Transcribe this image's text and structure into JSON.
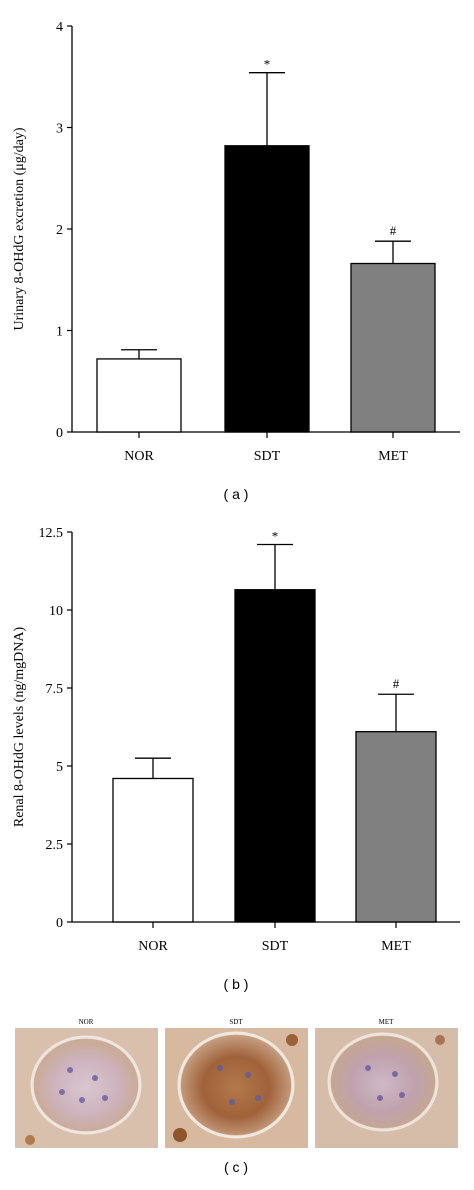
{
  "figure": {
    "panel_labels": [
      "( a )",
      "( b )",
      "( c )"
    ]
  },
  "chart_data": [
    {
      "type": "bar",
      "panel": "( a )",
      "categories": [
        "NOR",
        "SDT",
        "MET"
      ],
      "values": [
        0.72,
        2.82,
        1.66
      ],
      "errors": [
        0.09,
        0.72,
        0.22
      ],
      "significance": [
        "",
        "*",
        "#"
      ],
      "bar_colors": [
        "#ffffff",
        "#000000",
        "#808080"
      ],
      "xlabel": "",
      "ylabel": "Urinary 8-OHdG excretion (μg/day)",
      "ylim": [
        0,
        4
      ],
      "yticks": [
        0,
        1,
        2,
        3,
        4
      ],
      "ytick_labels": [
        "0",
        "1",
        "2",
        "3",
        "4"
      ],
      "grid": false
    },
    {
      "type": "bar",
      "panel": "( b )",
      "categories": [
        "NOR",
        "SDT",
        "MET"
      ],
      "values": [
        4.6,
        10.65,
        6.1
      ],
      "errors": [
        0.65,
        1.45,
        1.2
      ],
      "significance": [
        "",
        "*",
        "#"
      ],
      "bar_colors": [
        "#ffffff",
        "#000000",
        "#808080"
      ],
      "xlabel": "",
      "ylabel": "Renal 8-OHdG levels (ng/mgDNA)",
      "ylim": [
        0,
        12.5
      ],
      "yticks": [
        0,
        2.5,
        5,
        7.5,
        10,
        12.5
      ],
      "ytick_labels": [
        "0",
        "2.5",
        "5",
        "7.5",
        "10",
        "12.5"
      ],
      "grid": false
    }
  ],
  "micrographs": {
    "panel": "( c )",
    "titles": [
      "NOR",
      "SDT",
      "MET"
    ]
  }
}
